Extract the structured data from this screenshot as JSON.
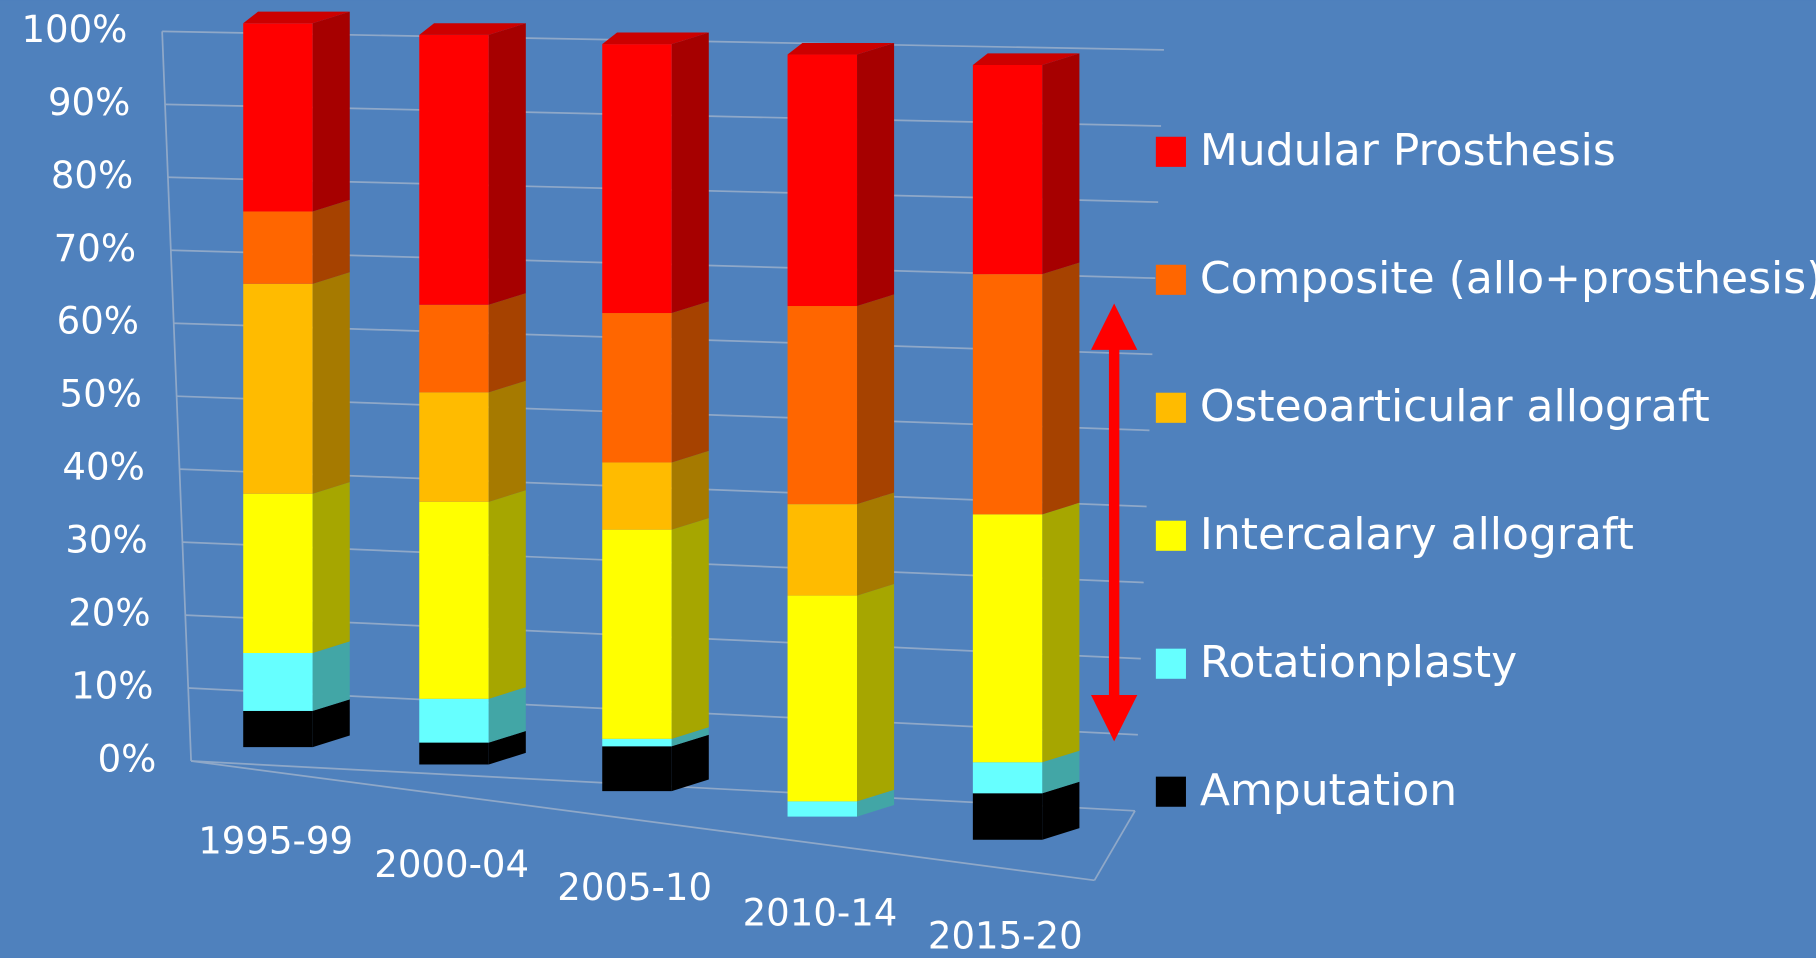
{
  "chart_data": {
    "type": "bar3d_stacked",
    "categories": [
      "1995-99",
      "2000-04",
      "2005-10",
      "2010-14",
      "2015-20"
    ],
    "series": [
      {
        "name": "Amputation",
        "color": "#000000",
        "values": [
          5,
          3,
          6,
          0,
          6
        ]
      },
      {
        "name": "Rotationplasty",
        "color": "#66ffff",
        "values": [
          8,
          6,
          1,
          2,
          4
        ]
      },
      {
        "name": "Intercalary allograft",
        "color": "#ffff00",
        "values": [
          22,
          27,
          28,
          27,
          32
        ]
      },
      {
        "name": "Osteoarticular allograft",
        "color": "#ffbb00",
        "values": [
          29,
          15,
          9,
          12,
          0
        ]
      },
      {
        "name": "Composite (allo+prosthesis)",
        "color": "#ff6600",
        "values": [
          10,
          12,
          20,
          26,
          31
        ]
      },
      {
        "name": "Mudular Prosthesis",
        "color": "#ff0000",
        "values": [
          26,
          37,
          36,
          33,
          27
        ]
      }
    ],
    "ylim": [
      0,
      100
    ],
    "yticks": [
      {
        "value": 0,
        "label": "0%"
      },
      {
        "value": 10,
        "label": "10%"
      },
      {
        "value": 20,
        "label": "20%"
      },
      {
        "value": 30,
        "label": "30%"
      },
      {
        "value": 40,
        "label": "40%"
      },
      {
        "value": 50,
        "label": "50%"
      },
      {
        "value": 60,
        "label": "60%"
      },
      {
        "value": 70,
        "label": "70%"
      },
      {
        "value": 80,
        "label": "80%"
      },
      {
        "value": 90,
        "label": "90%"
      },
      {
        "value": 100,
        "label": "100%"
      }
    ],
    "grid": true,
    "legend": "right"
  }
}
